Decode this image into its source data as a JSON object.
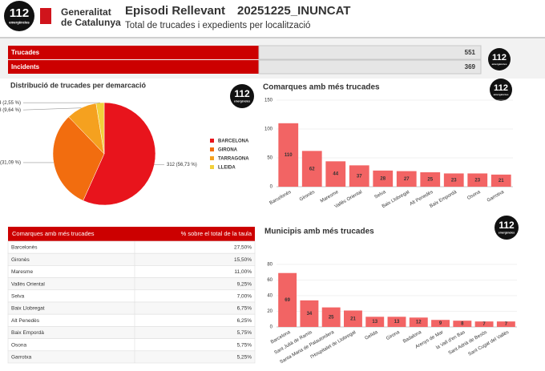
{
  "header": {
    "logo": "112",
    "logo_sub": "emergències",
    "org_line1": "Generalitat",
    "org_line2": "de Catalunya",
    "title": "Episodi Rellevant",
    "code": "20251225_INUNCAT",
    "subtitle": "Total de trucades i expedients per localització"
  },
  "summary": {
    "rows": [
      [
        "Trucades",
        "551"
      ],
      [
        "Incidents",
        "369"
      ]
    ]
  },
  "chart_data": [
    {
      "type": "pie",
      "title": "Distribució de trucades per demarcació",
      "categories": [
        "BARCELONA",
        "GIRONA",
        "TARRAGONA",
        "LLEIDA"
      ],
      "values": [
        312,
        171,
        53,
        14
      ],
      "value_labels": [
        "312 (56,73 %)",
        "171 (31,09 %)",
        "53 (9,64 %)",
        "14 (2,55 %)"
      ],
      "colors": [
        "#e8141c",
        "#f26d0f",
        "#f5a11f",
        "#f2d03b"
      ]
    },
    {
      "type": "bar",
      "title": "Comarques amb més trucades",
      "categories": [
        "Barcelonès",
        "Gironès",
        "Maresme",
        "Vallès Oriental",
        "Selva",
        "Baix Llobregat",
        "Alt Penedès",
        "Baix Empordà",
        "Osona",
        "Garrotxa"
      ],
      "values": [
        110,
        62,
        44,
        37,
        28,
        27,
        25,
        23,
        23,
        21
      ],
      "color": "#f26464",
      "ylim": [
        0,
        150
      ],
      "yticks": [
        0,
        50,
        100,
        150
      ],
      "grid": true
    },
    {
      "type": "bar",
      "title": "Municipis amb més trucades",
      "categories": [
        "Barcelona",
        "Sant Julià de Ramis",
        "Santa Maria de Palautordera",
        "l'Hospitalet de Llobregat",
        "Gelida",
        "Girona",
        "Badalona",
        "Arenys de Mar",
        "la Vall d'en Bas",
        "Sant Adrià de Besòs",
        "Sant Cugat del Vallès"
      ],
      "values": [
        69,
        34,
        25,
        21,
        13,
        13,
        12,
        9,
        8,
        7,
        7
      ],
      "color": "#f26464",
      "ylim": [
        0,
        80
      ],
      "yticks": [
        0,
        20,
        40,
        60,
        80
      ],
      "grid": true
    }
  ],
  "table": {
    "header": [
      "Comarques amb més trucades",
      "% sobre el total de la taula"
    ],
    "rows": [
      [
        "Barcelonès",
        "27,50%"
      ],
      [
        "Gironès",
        "15,50%"
      ],
      [
        "Maresme",
        "11,00%"
      ],
      [
        "Vallès Oriental",
        "9,25%"
      ],
      [
        "Selva",
        "7,00%"
      ],
      [
        "Baix Llobregat",
        "6,75%"
      ],
      [
        "Alt Penedès",
        "6,25%"
      ],
      [
        "Baix Empordà",
        "5,75%"
      ],
      [
        "Osona",
        "5,75%"
      ],
      [
        "Garrotxa",
        "5,25%"
      ]
    ]
  }
}
